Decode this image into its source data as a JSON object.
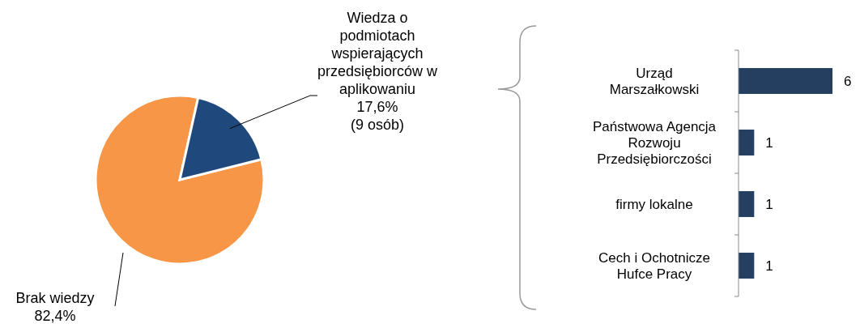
{
  "chart_data": [
    {
      "type": "pie",
      "categories": [
        "Wiedza o podmiotach wspierających przedsiębiorców w aplikowaniu",
        "Brak wiedzy"
      ],
      "values": [
        17.6,
        82.4
      ],
      "colors": [
        "#1f497d",
        "#f79646"
      ],
      "value_labels": [
        "17,6%\n(9 osób)",
        "82,4%"
      ]
    },
    {
      "type": "bar",
      "orientation": "horizontal",
      "categories": [
        "Urząd Marszałkowski",
        "Państwowa Agencja Rozwoju Przedsiębiorczości",
        "firmy lokalne",
        "Cech i Ochotnicze Hufce Pracy"
      ],
      "values": [
        6,
        1,
        1,
        1
      ],
      "color": "#243f60",
      "data_labels": true
    }
  ]
}
